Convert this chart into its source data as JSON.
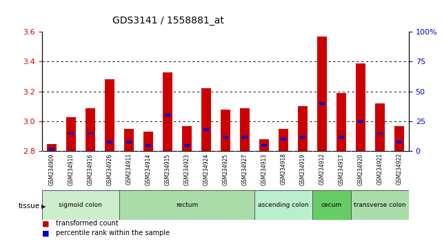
{
  "title": "GDS3141 / 1558881_at",
  "samples": [
    "GSM234909",
    "GSM234910",
    "GSM234916",
    "GSM234926",
    "GSM234911",
    "GSM234914",
    "GSM234915",
    "GSM234923",
    "GSM234924",
    "GSM234925",
    "GSM234927",
    "GSM234913",
    "GSM234918",
    "GSM234919",
    "GSM234912",
    "GSM234917",
    "GSM234920",
    "GSM234921",
    "GSM234922"
  ],
  "transformed_count": [
    2.85,
    3.03,
    3.09,
    3.28,
    2.95,
    2.93,
    3.33,
    2.97,
    3.22,
    3.08,
    3.09,
    2.88,
    2.95,
    3.1,
    3.57,
    3.19,
    3.39,
    3.12,
    2.97
  ],
  "percentile_rank": [
    2,
    15,
    15,
    8,
    8,
    5,
    30,
    5,
    18,
    12,
    12,
    5,
    10,
    12,
    40,
    12,
    25,
    15,
    8
  ],
  "ymin": 2.8,
  "ymax": 3.6,
  "yticks": [
    2.8,
    3.0,
    3.2,
    3.4,
    3.6
  ],
  "right_yticks": [
    0,
    25,
    50,
    75,
    100
  ],
  "bar_color": "#cc0000",
  "percentile_color": "#0000cc",
  "tissue_groups": [
    {
      "label": "sigmoid colon",
      "start": 0,
      "end": 4,
      "color": "#cceecc"
    },
    {
      "label": "rectum",
      "start": 4,
      "end": 11,
      "color": "#aaddaa"
    },
    {
      "label": "ascending colon",
      "start": 11,
      "end": 14,
      "color": "#bbeecc"
    },
    {
      "label": "cecum",
      "start": 14,
      "end": 16,
      "color": "#66cc66"
    },
    {
      "label": "transverse colon",
      "start": 16,
      "end": 19,
      "color": "#aaddaa"
    }
  ],
  "bar_width": 0.5,
  "grid_color": "#000000",
  "bg_color": "#ffffff",
  "axis_color_left": "#cc0000",
  "axis_color_right": "#0000cc",
  "tick_bg_color": "#cccccc",
  "plot_bg_color": "#ffffff"
}
